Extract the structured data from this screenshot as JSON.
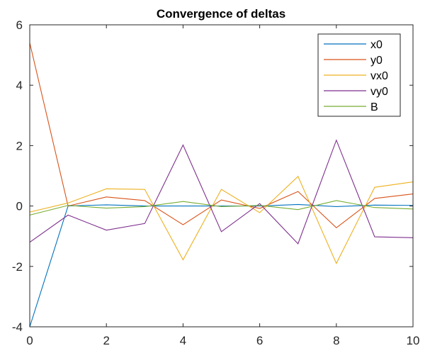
{
  "chart_data": {
    "type": "line",
    "title": "Convergence of deltas",
    "xlabel": "",
    "ylabel": "",
    "xlim": [
      0,
      10
    ],
    "ylim": [
      -4,
      6
    ],
    "xticks": [
      0,
      2,
      4,
      6,
      8,
      10
    ],
    "yticks": [
      -4,
      -2,
      0,
      2,
      4,
      6
    ],
    "grid": false,
    "legend_position": "top-right",
    "x": [
      0,
      1,
      2,
      3,
      4,
      5,
      6,
      7,
      8,
      9,
      10
    ],
    "series": [
      {
        "name": "x0",
        "color": "#0072BD",
        "values": [
          -4.0,
          0.0,
          0.04,
          0.0,
          0.0,
          0.0,
          0.0,
          0.05,
          -0.02,
          0.03,
          0.02
        ]
      },
      {
        "name": "y0",
        "color": "#D95319",
        "values": [
          5.4,
          0.0,
          0.3,
          0.18,
          -0.62,
          0.2,
          -0.08,
          0.48,
          -0.72,
          0.25,
          0.4
        ]
      },
      {
        "name": "vx0",
        "color": "#EDB120",
        "values": [
          -0.2,
          0.1,
          0.57,
          0.55,
          -1.78,
          0.55,
          -0.22,
          0.98,
          -1.9,
          0.62,
          0.8
        ]
      },
      {
        "name": "vy0",
        "color": "#7E2F8E",
        "values": [
          -1.2,
          -0.3,
          -0.8,
          -0.58,
          2.02,
          -0.85,
          0.08,
          -1.25,
          2.18,
          -1.02,
          -1.05
        ]
      },
      {
        "name": "B",
        "color": "#77AC30",
        "values": [
          -0.3,
          0.02,
          -0.07,
          -0.02,
          0.15,
          -0.02,
          0.02,
          -0.12,
          0.18,
          -0.05,
          -0.1
        ]
      }
    ]
  }
}
